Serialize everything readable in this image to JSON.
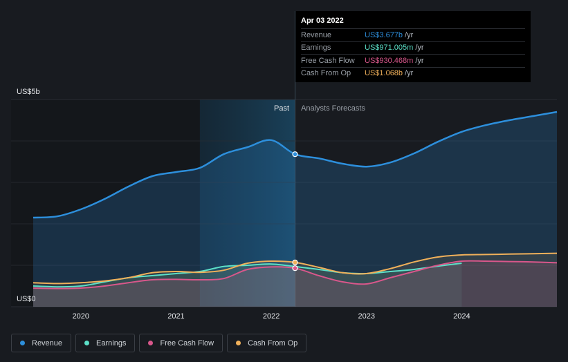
{
  "tooltip": {
    "date": "Apr 03 2022",
    "rows": [
      {
        "label": "Revenue",
        "value": "US$3.677b",
        "unit": "/yr",
        "color": "#2d8fdc"
      },
      {
        "label": "Earnings",
        "value": "US$971.005m",
        "unit": "/yr",
        "color": "#5ce0c8"
      },
      {
        "label": "Free Cash Flow",
        "value": "US$930.468m",
        "unit": "/yr",
        "color": "#d9578b"
      },
      {
        "label": "Cash From Op",
        "value": "US$1.068b",
        "unit": "/yr",
        "color": "#f0b05a"
      }
    ]
  },
  "legend": [
    {
      "label": "Revenue",
      "color": "#2d8fdc"
    },
    {
      "label": "Earnings",
      "color": "#5ce0c8"
    },
    {
      "label": "Free Cash Flow",
      "color": "#d9578b"
    },
    {
      "label": "Cash From Op",
      "color": "#f0b05a"
    }
  ],
  "chart_data": {
    "type": "line",
    "ylabel_top": "US$5b",
    "ylabel_bottom": "US$0",
    "ylim": [
      0,
      5
    ],
    "xlim": [
      2019.5,
      2025.0
    ],
    "x_ticks": [
      2020,
      2021,
      2022,
      2023,
      2024
    ],
    "x_tick_labels": [
      "2020",
      "2021",
      "2022",
      "2023",
      "2024"
    ],
    "past_label": "Past",
    "forecast_label": "Analysts Forecasts",
    "divider_x": 2022.25,
    "highlight_start": 2021.25,
    "series": [
      {
        "name": "Revenue",
        "color": "#2d8fdc",
        "x": [
          2019.5,
          2019.75,
          2020.0,
          2020.25,
          2020.5,
          2020.75,
          2021.0,
          2021.25,
          2021.5,
          2021.75,
          2022.0,
          2022.25,
          2022.5,
          2022.75,
          2023.0,
          2023.25,
          2023.5,
          2023.75,
          2024.0,
          2024.25,
          2024.5,
          2024.75,
          2025.0
        ],
        "values": [
          2.15,
          2.18,
          2.35,
          2.6,
          2.9,
          3.15,
          3.25,
          3.35,
          3.68,
          3.85,
          4.02,
          3.68,
          3.58,
          3.45,
          3.38,
          3.48,
          3.7,
          3.98,
          4.22,
          4.38,
          4.5,
          4.6,
          4.7
        ]
      },
      {
        "name": "Earnings",
        "color": "#5ce0c8",
        "x": [
          2019.5,
          2019.75,
          2020.0,
          2020.25,
          2020.5,
          2020.75,
          2021.0,
          2021.25,
          2021.5,
          2021.75,
          2022.0,
          2022.25,
          2022.5,
          2022.75,
          2023.0,
          2023.25,
          2023.5,
          2023.75,
          2024.0
        ],
        "values": [
          0.5,
          0.48,
          0.5,
          0.6,
          0.7,
          0.75,
          0.8,
          0.85,
          0.97,
          1.0,
          1.03,
          0.97,
          0.9,
          0.82,
          0.8,
          0.85,
          0.9,
          0.98,
          1.05
        ]
      },
      {
        "name": "Free Cash Flow",
        "color": "#d9578b",
        "x": [
          2019.5,
          2019.75,
          2020.0,
          2020.25,
          2020.5,
          2020.75,
          2021.0,
          2021.25,
          2021.5,
          2021.75,
          2022.0,
          2022.25,
          2022.5,
          2022.75,
          2023.0,
          2023.25,
          2023.5,
          2023.75,
          2024.0,
          2024.25,
          2024.5,
          2024.75,
          2025.0
        ],
        "values": [
          0.45,
          0.44,
          0.45,
          0.5,
          0.58,
          0.65,
          0.66,
          0.65,
          0.68,
          0.9,
          0.96,
          0.93,
          0.75,
          0.6,
          0.55,
          0.7,
          0.85,
          1.0,
          1.1,
          1.1,
          1.09,
          1.08,
          1.06
        ]
      },
      {
        "name": "Cash From Op",
        "color": "#f0b05a",
        "x": [
          2019.5,
          2019.75,
          2020.0,
          2020.25,
          2020.5,
          2020.75,
          2021.0,
          2021.25,
          2021.5,
          2021.75,
          2022.0,
          2022.25,
          2022.5,
          2022.75,
          2023.0,
          2023.25,
          2023.5,
          2023.75,
          2024.0,
          2024.25,
          2024.5,
          2024.75,
          2025.0
        ],
        "values": [
          0.58,
          0.56,
          0.58,
          0.62,
          0.7,
          0.82,
          0.85,
          0.83,
          0.88,
          1.05,
          1.1,
          1.07,
          0.95,
          0.82,
          0.8,
          0.92,
          1.08,
          1.2,
          1.25,
          1.26,
          1.27,
          1.28,
          1.29
        ]
      }
    ]
  }
}
